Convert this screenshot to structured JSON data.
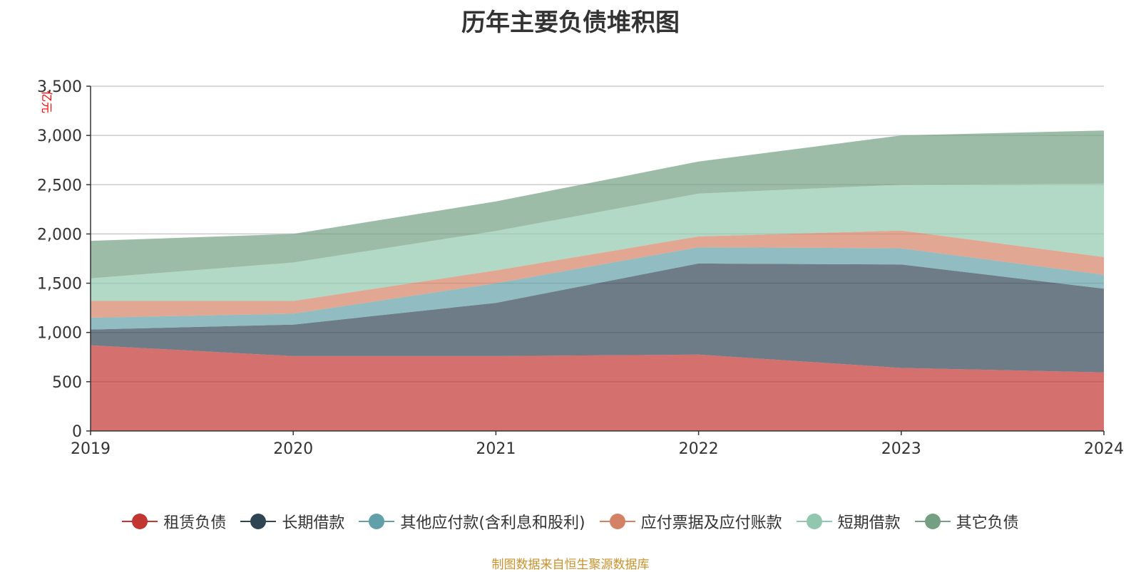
{
  "chart_data": {
    "type": "area",
    "title": "历年主要负债堆积图",
    "unit_label": "亿元",
    "x": [
      "2019",
      "2020",
      "2021",
      "2022",
      "2023",
      "2024"
    ],
    "ylim": [
      0,
      3500
    ],
    "yticks": [
      0,
      500,
      1000,
      1500,
      2000,
      2500,
      3000,
      3500
    ],
    "ytick_labels": [
      "0",
      "500",
      "1,000",
      "1,500",
      "2,000",
      "2,500",
      "3,000",
      "3,500"
    ],
    "stacked": true,
    "grid": true,
    "legend_position": "bottom",
    "series": [
      {
        "name": "租赁负债",
        "color": "#c23531",
        "values": [
          870,
          760,
          760,
          775,
          640,
          595
        ]
      },
      {
        "name": "长期借款",
        "color": "#2f4554",
        "values": [
          160,
          320,
          540,
          925,
          1050,
          850
        ]
      },
      {
        "name": "其他应付款(含利息和股利)",
        "color": "#61a0a8",
        "values": [
          120,
          110,
          200,
          165,
          165,
          140
        ]
      },
      {
        "name": "应付票据及应付账款",
        "color": "#d48265",
        "values": [
          170,
          130,
          130,
          110,
          180,
          180
        ]
      },
      {
        "name": "短期借款",
        "color": "#91c7ae",
        "values": [
          230,
          390,
          400,
          435,
          465,
          745
        ]
      },
      {
        "name": "其它负债",
        "color": "#749f83",
        "values": [
          380,
          290,
          300,
          325,
          500,
          540
        ]
      }
    ]
  },
  "source_note": "制图数据来自恒生聚源数据库"
}
